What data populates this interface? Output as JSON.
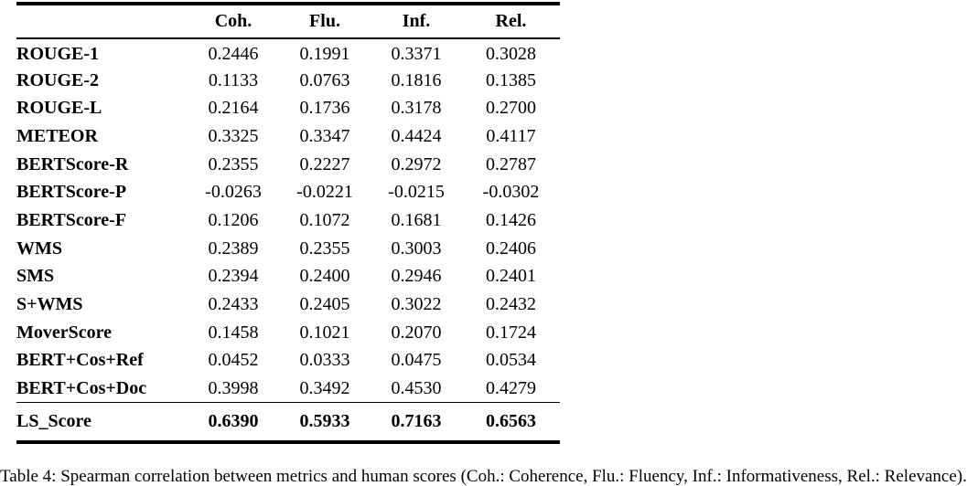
{
  "table": {
    "columns": [
      "Coh.",
      "Flu.",
      "Inf.",
      "Rel."
    ],
    "rows": [
      {
        "label": "ROUGE-1",
        "values": [
          "0.2446",
          "0.1991",
          "0.3371",
          "0.3028"
        ]
      },
      {
        "label": "ROUGE-2",
        "values": [
          "0.1133",
          "0.0763",
          "0.1816",
          "0.1385"
        ]
      },
      {
        "label": "ROUGE-L",
        "values": [
          "0.2164",
          "0.1736",
          "0.3178",
          "0.2700"
        ]
      },
      {
        "label": "METEOR",
        "values": [
          "0.3325",
          "0.3347",
          "0.4424",
          "0.4117"
        ]
      },
      {
        "label": "BERTScore-R",
        "values": [
          "0.2355",
          "0.2227",
          "0.2972",
          "0.2787"
        ]
      },
      {
        "label": "BERTScore-P",
        "values": [
          "-0.0263",
          "-0.0221",
          "-0.0215",
          "-0.0302"
        ]
      },
      {
        "label": "BERTScore-F",
        "values": [
          "0.1206",
          "0.1072",
          "0.1681",
          "0.1426"
        ]
      },
      {
        "label": "WMS",
        "values": [
          "0.2389",
          "0.2355",
          "0.3003",
          "0.2406"
        ]
      },
      {
        "label": "SMS",
        "values": [
          "0.2394",
          "0.2400",
          "0.2946",
          "0.2401"
        ]
      },
      {
        "label": "S+WMS",
        "values": [
          "0.2433",
          "0.2405",
          "0.3022",
          "0.2432"
        ]
      },
      {
        "label": "MoverScore",
        "values": [
          "0.1458",
          "0.1021",
          "0.2070",
          "0.1724"
        ]
      },
      {
        "label": "BERT+Cos+Ref",
        "values": [
          "0.0452",
          "0.0333",
          "0.0475",
          "0.0534"
        ]
      },
      {
        "label": "BERT+Cos+Doc",
        "values": [
          "0.3998",
          "0.3492",
          "0.4530",
          "0.4279"
        ]
      }
    ],
    "footer_row": {
      "label": "LS_Score",
      "values": [
        "0.6390",
        "0.5933",
        "0.7163",
        "0.6563"
      ]
    }
  },
  "caption": "Table 4: Spearman correlation between metrics and human scores (Coh.: Coherence, Flu.: Fluency, Inf.: Informativeness, Rel.: Relevance)."
}
